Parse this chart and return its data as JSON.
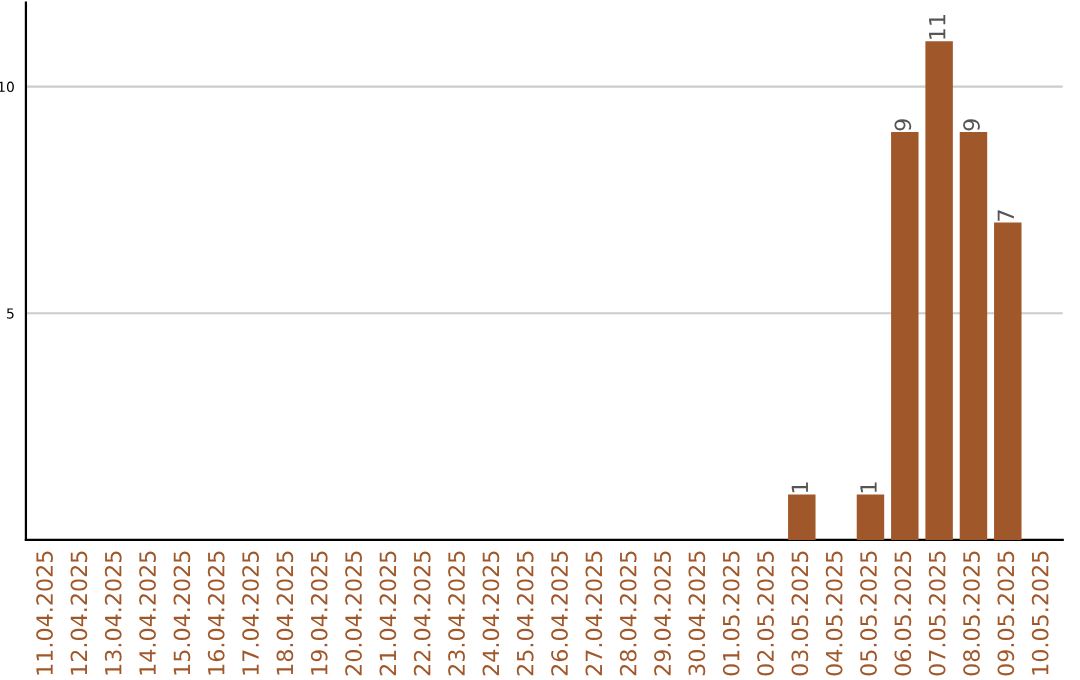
{
  "chart_data": {
    "type": "bar",
    "categories": [
      "11.04.2025",
      "12.04.2025",
      "13.04.2025",
      "14.04.2025",
      "15.04.2025",
      "16.04.2025",
      "17.04.2025",
      "18.04.2025",
      "19.04.2025",
      "20.04.2025",
      "21.04.2025",
      "22.04.2025",
      "23.04.2025",
      "24.04.2025",
      "25.04.2025",
      "26.04.2025",
      "27.04.2025",
      "28.04.2025",
      "29.04.2025",
      "30.04.2025",
      "01.05.2025",
      "02.05.2025",
      "03.05.2025",
      "04.05.2025",
      "05.05.2025",
      "06.05.2025",
      "07.05.2025",
      "08.05.2025",
      "09.05.2025",
      "10.05.2025"
    ],
    "values": [
      0,
      0,
      0,
      0,
      0,
      0,
      0,
      0,
      0,
      0,
      0,
      0,
      0,
      0,
      0,
      0,
      0,
      0,
      0,
      0,
      0,
      0,
      1,
      0,
      1,
      9,
      11,
      9,
      7,
      0
    ],
    "value_labels": [
      null,
      null,
      null,
      null,
      null,
      null,
      null,
      null,
      null,
      null,
      null,
      null,
      null,
      null,
      null,
      null,
      null,
      null,
      null,
      null,
      null,
      null,
      "1",
      null,
      "1",
      "9",
      "11",
      "9",
      "7",
      null
    ],
    "color": "#a0582a",
    "ylim": [
      0,
      11.85
    ],
    "yticks": [
      5,
      10
    ],
    "grid": "y",
    "legend": false
  }
}
